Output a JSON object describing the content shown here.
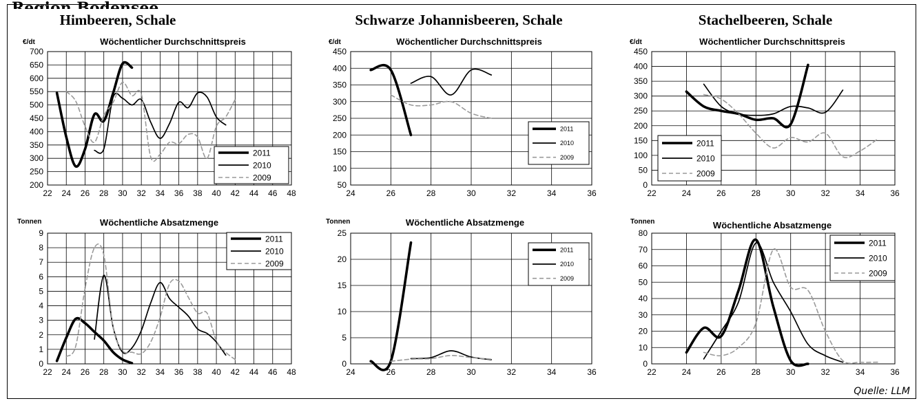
{
  "region_title": "Region Bodensee",
  "source_note": "Quelle: LLM",
  "products": [
    {
      "title": "Himbeeren, Schale"
    },
    {
      "title": "Schwarze Johannisbeeren, Schale"
    },
    {
      "title": "Stachelbeeren, Schale"
    }
  ],
  "colors": {
    "2011": "#000000",
    "2010": "#000000",
    "2009": "#999999"
  },
  "chart_data": [
    {
      "id": "himbeeren-price",
      "type": "line",
      "title": "Wöchentlicher Durchschnittspreis",
      "unit": "€/dt",
      "xlabel": "",
      "ylabel": "€/dt",
      "xlim": [
        22,
        48
      ],
      "x_ticks": [
        22,
        24,
        26,
        28,
        30,
        32,
        34,
        36,
        38,
        40,
        42,
        44,
        46,
        48
      ],
      "ylim": [
        200,
        700
      ],
      "y_ticks": [
        200,
        250,
        300,
        350,
        400,
        450,
        500,
        550,
        600,
        650,
        700
      ],
      "grid": true,
      "legend_position": "bottom-right",
      "series": [
        {
          "name": "2011",
          "x": [
            23,
            24,
            25,
            26,
            27,
            28,
            29,
            30,
            31
          ],
          "y": [
            545,
            380,
            270,
            335,
            465,
            440,
            545,
            655,
            640
          ]
        },
        {
          "name": "2010",
          "x": [
            27,
            28,
            29,
            30,
            31,
            32,
            33,
            34,
            35,
            36,
            37,
            38,
            39,
            40,
            41
          ],
          "y": [
            330,
            335,
            530,
            525,
            500,
            520,
            435,
            375,
            430,
            510,
            490,
            545,
            530,
            455,
            425
          ]
        },
        {
          "name": "2009",
          "x": [
            24,
            25,
            26,
            27,
            28,
            29,
            30,
            31,
            32,
            33,
            34,
            35,
            36,
            37,
            38,
            39,
            40,
            41,
            42
          ],
          "y": [
            550,
            515,
            420,
            360,
            460,
            510,
            585,
            535,
            540,
            305,
            315,
            360,
            355,
            390,
            380,
            300,
            420,
            455,
            520
          ]
        }
      ]
    },
    {
      "id": "johannisbeeren-price",
      "type": "line",
      "title": "Wöchentlicher Durchschnittspreis",
      "unit": "€/dt",
      "xlabel": "",
      "ylabel": "€/dt",
      "xlim": [
        24,
        36
      ],
      "x_ticks": [
        24,
        26,
        28,
        30,
        32,
        34,
        36
      ],
      "ylim": [
        50,
        450
      ],
      "y_ticks": [
        50,
        100,
        150,
        200,
        250,
        300,
        350,
        400,
        450
      ],
      "grid": true,
      "legend_position": "right",
      "series": [
        {
          "name": "2011",
          "x": [
            25,
            26,
            27
          ],
          "y": [
            395,
            395,
            200
          ]
        },
        {
          "name": "2010",
          "x": [
            27,
            28,
            29,
            30,
            31
          ],
          "y": [
            355,
            375,
            320,
            395,
            380
          ]
        },
        {
          "name": "2009",
          "x": [
            26,
            27,
            28,
            29,
            30,
            31
          ],
          "y": [
            320,
            290,
            290,
            300,
            265,
            250
          ]
        }
      ]
    },
    {
      "id": "stachelbeeren-price",
      "type": "line",
      "title": "Wöchentlicher Durchschnittspreis",
      "unit": "€/dt",
      "xlabel": "",
      "ylabel": "€/dt",
      "xlim": [
        22,
        36
      ],
      "x_ticks": [
        22,
        24,
        26,
        28,
        30,
        32,
        34,
        36
      ],
      "ylim": [
        0,
        450
      ],
      "y_ticks": [
        0,
        50,
        100,
        150,
        200,
        250,
        300,
        350,
        400,
        450
      ],
      "grid": true,
      "legend_position": "bottom-left",
      "series": [
        {
          "name": "2011",
          "x": [
            24,
            25,
            26,
            27,
            28,
            29,
            30,
            31
          ],
          "y": [
            315,
            265,
            250,
            240,
            220,
            225,
            205,
            405
          ]
        },
        {
          "name": "2010",
          "x": [
            25,
            26,
            27,
            28,
            29,
            30,
            31,
            32,
            33
          ],
          "y": [
            340,
            265,
            240,
            235,
            240,
            265,
            260,
            245,
            320
          ]
        },
        {
          "name": "2009",
          "x": [
            25,
            26,
            27,
            28,
            29,
            30,
            31,
            32,
            33,
            34,
            35
          ],
          "y": [
            305,
            290,
            240,
            175,
            125,
            160,
            145,
            175,
            95,
            115,
            155
          ]
        }
      ]
    },
    {
      "id": "himbeeren-volume",
      "type": "line",
      "title": "Wöchentliche Absatzmenge",
      "unit": "Tonnen",
      "xlabel": "",
      "ylabel": "Tonnen",
      "xlim": [
        22,
        48
      ],
      "x_ticks": [
        22,
        24,
        26,
        28,
        30,
        32,
        34,
        36,
        38,
        40,
        42,
        44,
        46,
        48
      ],
      "ylim": [
        0,
        9
      ],
      "y_ticks": [
        0,
        1,
        2,
        3,
        4,
        5,
        6,
        7,
        8,
        9
      ],
      "grid": true,
      "legend_position": "top-right",
      "series": [
        {
          "name": "2011",
          "x": [
            23,
            24,
            25,
            26,
            27,
            28,
            29,
            30,
            31
          ],
          "y": [
            0.2,
            1.8,
            3.1,
            2.8,
            2.2,
            1.6,
            0.8,
            0.3,
            0.05
          ]
        },
        {
          "name": "2010",
          "x": [
            27,
            28,
            29,
            30,
            31,
            32,
            33,
            34,
            35,
            36,
            37,
            38,
            39,
            40,
            41
          ],
          "y": [
            1.7,
            6.1,
            2.5,
            0.8,
            1.1,
            2.3,
            4.2,
            5.6,
            4.5,
            3.9,
            3.3,
            2.4,
            2.1,
            1.5,
            0.6
          ]
        },
        {
          "name": "2009",
          "x": [
            24,
            25,
            26,
            27,
            28,
            29,
            30,
            31,
            32,
            33,
            34,
            35,
            36,
            37,
            38,
            39,
            40,
            41,
            42
          ],
          "y": [
            0.5,
            1.2,
            5.2,
            8.0,
            7.5,
            2.5,
            0.9,
            0.8,
            0.7,
            1.5,
            3.2,
            5.5,
            5.7,
            4.6,
            3.5,
            3.5,
            1.6,
            0.8,
            0.3
          ]
        }
      ]
    },
    {
      "id": "johannisbeeren-volume",
      "type": "line",
      "title": "Wöchentliche Absatzmenge",
      "unit": "Tonnen",
      "xlabel": "",
      "ylabel": "Tonnen",
      "xlim": [
        24,
        36
      ],
      "x_ticks": [
        24,
        26,
        28,
        30,
        32,
        34,
        36
      ],
      "ylim": [
        0,
        25
      ],
      "y_ticks": [
        0,
        5,
        10,
        15,
        20,
        25
      ],
      "grid": true,
      "legend_position": "right",
      "series": [
        {
          "name": "2011",
          "x": [
            25,
            26,
            27
          ],
          "y": [
            0.5,
            0.5,
            23.2
          ]
        },
        {
          "name": "2010",
          "x": [
            27,
            28,
            29,
            30,
            31
          ],
          "y": [
            1.0,
            1.2,
            2.5,
            1.3,
            0.8
          ]
        },
        {
          "name": "2009",
          "x": [
            26,
            27,
            28,
            29,
            30,
            31
          ],
          "y": [
            0.5,
            0.9,
            1.0,
            1.6,
            1.2,
            0.9
          ]
        }
      ]
    },
    {
      "id": "stachelbeeren-volume",
      "type": "line",
      "title": "Wöchentliche Absatzmenge",
      "unit": "Tonnen",
      "xlabel": "",
      "ylabel": "Tonnen",
      "xlim": [
        22,
        36
      ],
      "x_ticks": [
        22,
        24,
        26,
        28,
        30,
        32,
        34,
        36
      ],
      "ylim": [
        0,
        80
      ],
      "y_ticks": [
        0,
        10,
        20,
        30,
        40,
        50,
        60,
        70,
        80
      ],
      "grid": true,
      "legend_position": "top-right",
      "series": [
        {
          "name": "2011",
          "x": [
            24,
            25,
            26,
            27,
            28,
            29,
            30,
            31
          ],
          "y": [
            7,
            22,
            17,
            45,
            76,
            35,
            2,
            0
          ]
        },
        {
          "name": "2010",
          "x": [
            25,
            26,
            27,
            28,
            29,
            30,
            31,
            32,
            33
          ],
          "y": [
            3,
            20,
            38,
            74,
            50,
            32,
            12,
            5,
            1
          ]
        },
        {
          "name": "2009",
          "x": [
            25,
            26,
            27,
            28,
            29,
            30,
            31,
            32,
            33,
            34,
            35
          ],
          "y": [
            7,
            5,
            10,
            25,
            70,
            47,
            45,
            20,
            2,
            1,
            1
          ]
        }
      ]
    }
  ]
}
